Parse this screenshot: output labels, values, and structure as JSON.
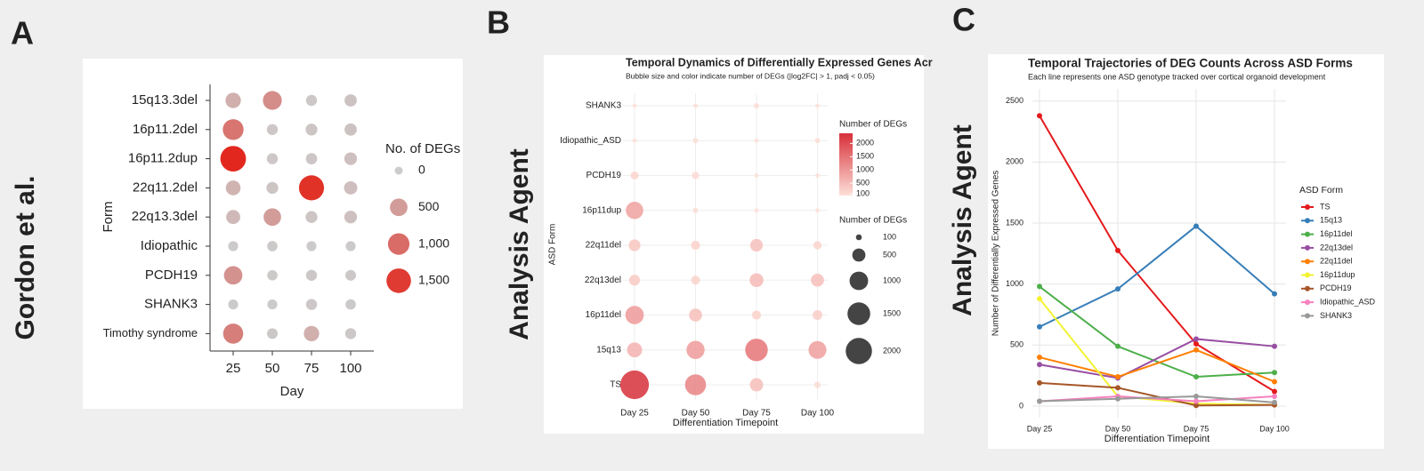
{
  "chart_data": [
    {
      "type": "bubble",
      "panel": "A",
      "side_label": "Gordon et al.",
      "x_label": "Day",
      "y_label": "Form",
      "x": [
        "25",
        "50",
        "75",
        "100"
      ],
      "categories": [
        "15q13.3del",
        "16p11.2del",
        "16p11.2dup",
        "22q11.2del",
        "22q13.3del",
        "Idiopathic",
        "PCDH19",
        "SHANK3",
        "Timothy syndrome"
      ],
      "values": [
        [
          300,
          650,
          50,
          100
        ],
        [
          900,
          50,
          80,
          100
        ],
        [
          1700,
          50,
          60,
          120
        ],
        [
          250,
          80,
          1600,
          150
        ],
        [
          200,
          500,
          80,
          120
        ],
        [
          20,
          30,
          20,
          20
        ],
        [
          600,
          30,
          50,
          40
        ],
        [
          20,
          20,
          50,
          30
        ],
        [
          800,
          40,
          300,
          50
        ]
      ],
      "size_legend": {
        "title": "No. of DEGs",
        "values": [
          0,
          500,
          {
            "value": 1000,
            "label": "1,000"
          },
          {
            "value": 1500,
            "label": "1,500"
          }
        ]
      }
    },
    {
      "type": "bubble",
      "panel": "B",
      "side_label": "Analysis Agent",
      "title": "Temporal Dynamics of Differentially Expressed Genes Acr",
      "subtitle": "Bubble size and color indicate number of DEGs (|log2FC| > 1, padj < 0.05)",
      "x_label": "Differentiation Timepoint",
      "y_label": "ASD Form",
      "x": [
        "Day 25",
        "Day 50",
        "Day 75",
        "Day 100"
      ],
      "categories": [
        "SHANK3",
        "Idiopathic_ASD",
        "PCDH19",
        "16p11dup",
        "22q11del",
        "22q13del",
        "16p11del",
        "15q13",
        "TS"
      ],
      "values": [
        [
          40,
          60,
          80,
          30
        ],
        [
          40,
          80,
          40,
          80
        ],
        [
          190,
          150,
          5,
          10
        ],
        [
          880,
          80,
          20,
          10
        ],
        [
          400,
          240,
          460,
          200
        ],
        [
          340,
          230,
          550,
          490
        ],
        [
          980,
          490,
          240,
          275
        ],
        [
          650,
          960,
          1475,
          920
        ],
        [
          2380,
          1275,
          510,
          120
        ]
      ],
      "colorbar": {
        "title": "Number of DEGs",
        "lim": [
          40,
          2380
        ],
        "ticks": [
          100,
          500,
          1000,
          1500,
          2000
        ]
      },
      "size_legend": {
        "title": "Number of DEGs",
        "values": [
          100,
          500,
          1000,
          1500,
          2000
        ]
      }
    },
    {
      "type": "line",
      "panel": "C",
      "side_label": "Analysis Agent",
      "title": "Temporal Trajectories of DEG Counts Across ASD Forms",
      "subtitle": "Each line represents one ASD genotype tracked over cortical organoid development",
      "x_label": "Differentiation Timepoint",
      "y_label": "Number of Differentially Expressed Genes",
      "categories": [
        "Day 25",
        "Day 50",
        "Day 75",
        "Day 100"
      ],
      "ylim": [
        -95,
        2600
      ],
      "yticks": [
        0,
        500,
        1000,
        1500,
        2000,
        2500
      ],
      "grid": true,
      "legend_title": "ASD Form",
      "legend": "right",
      "series": [
        {
          "name": "TS",
          "color": "#e41a1c",
          "values": [
            2380,
            1275,
            510,
            120
          ]
        },
        {
          "name": "15q13",
          "color": "#377eb8",
          "values": [
            650,
            960,
            1475,
            920
          ]
        },
        {
          "name": "16p11del",
          "color": "#4daf4a",
          "values": [
            980,
            490,
            240,
            275
          ]
        },
        {
          "name": "22q13del",
          "color": "#984ea3",
          "values": [
            340,
            230,
            550,
            490
          ]
        },
        {
          "name": "22q11del",
          "color": "#ff7f00",
          "values": [
            400,
            240,
            460,
            200
          ]
        },
        {
          "name": "16p11dup",
          "color": "#f2f230",
          "values": [
            880,
            80,
            20,
            10
          ]
        },
        {
          "name": "PCDH19",
          "color": "#a65628",
          "values": [
            190,
            150,
            5,
            10
          ]
        },
        {
          "name": "Idiopathic_ASD",
          "color": "#f781bf",
          "values": [
            40,
            80,
            40,
            80
          ]
        },
        {
          "name": "SHANK3",
          "color": "#999999",
          "values": [
            40,
            60,
            80,
            30
          ]
        }
      ]
    }
  ]
}
